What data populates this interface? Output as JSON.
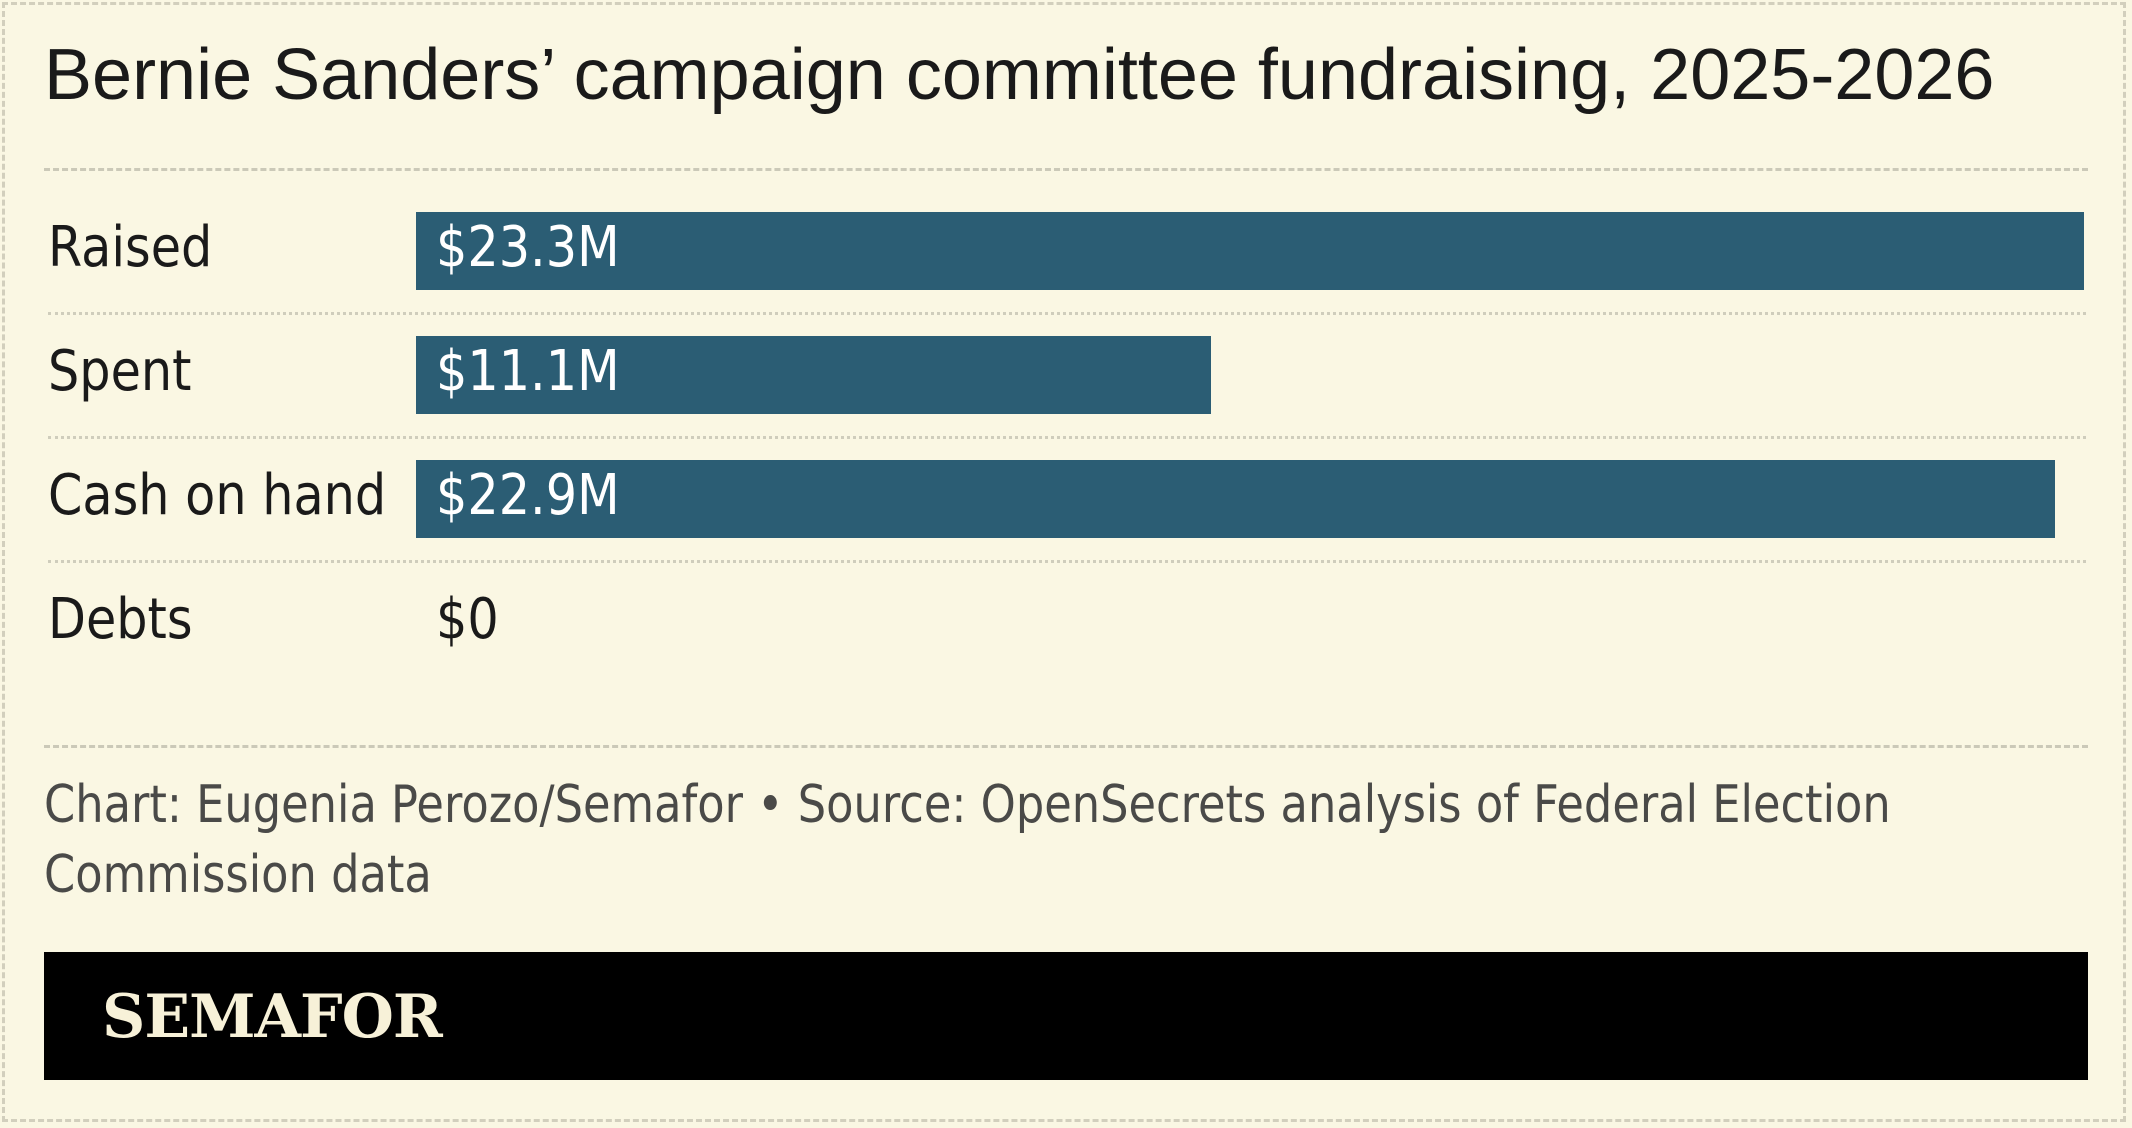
{
  "chart_data": {
    "type": "bar",
    "orientation": "horizontal",
    "title": "Bernie Sanders’ campaign committee fundraising, 2025-2026",
    "categories": [
      "Raised",
      "Spent",
      "Cash on hand",
      "Debts"
    ],
    "values": [
      23.3,
      11.1,
      22.9,
      0
    ],
    "value_labels": [
      "$23.3M",
      "$11.1M",
      "$22.9M",
      "$0"
    ],
    "unit": "$M",
    "xlim": [
      0,
      23.3
    ],
    "bar_color": "#2b5d74",
    "grid": false,
    "legend": "none"
  },
  "footer": {
    "credit_line1": "Chart: Eugenia Perozo/Semafor • Source: OpenSecrets analysis of Federal Election",
    "credit_line2": "Commission data"
  },
  "brand": {
    "logo_text": "SEMAFOR",
    "logo_color": "#f7f1d8",
    "bar_color": "#000000"
  },
  "colors": {
    "background": "#faf7e3",
    "text": "#1a1a1a",
    "bar": "#2b5d74"
  }
}
